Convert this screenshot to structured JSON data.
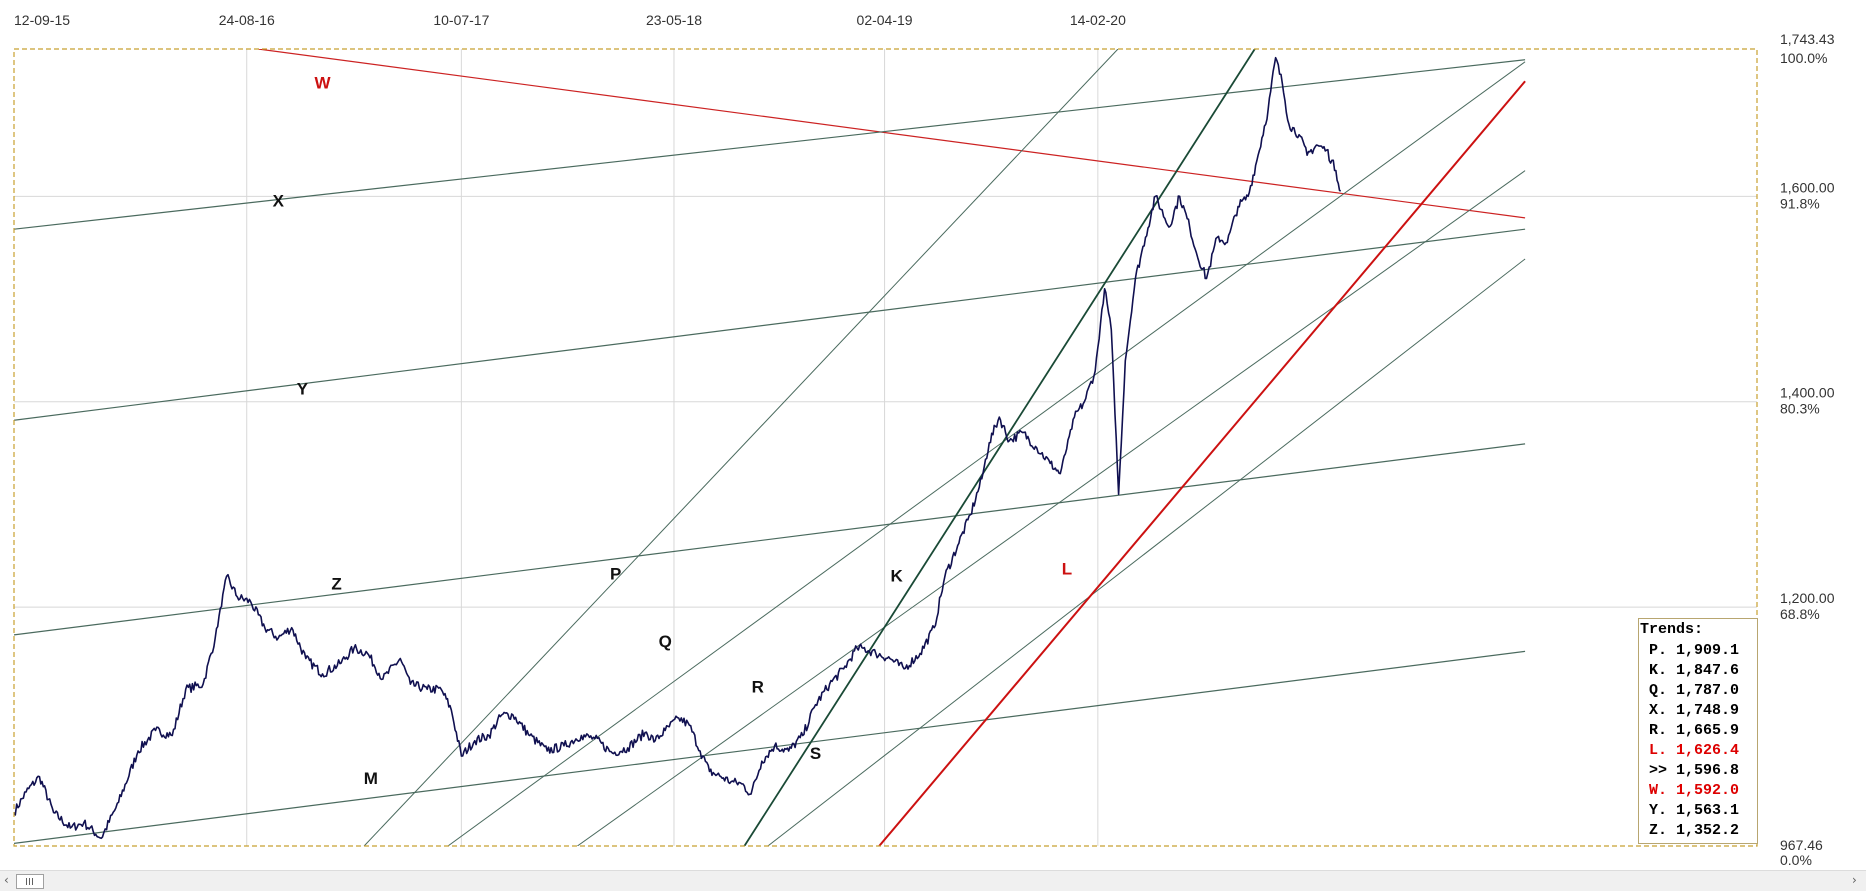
{
  "chart_data": {
    "type": "line",
    "x_start": "12-09-15",
    "x_end": "12-01-21",
    "ylim": [
      967.46,
      1743.43
    ],
    "date_ticks": [
      "12-09-15",
      "24-08-16",
      "10-07-17",
      "23-05-18",
      "02-04-19",
      "14-02-20"
    ],
    "price_ticks": [
      {
        "value": 1743.43,
        "label": "1,743.43",
        "pct": "100.0%"
      },
      {
        "value": 1600,
        "label": "1,600.00",
        "pct": "91.8%"
      },
      {
        "value": 1400,
        "label": "1,400.00",
        "pct": "80.3%"
      },
      {
        "value": 1200,
        "label": "1,200.00",
        "pct": "68.8%"
      },
      {
        "value": 967.46,
        "label": "967.46",
        "pct": "0.0%"
      }
    ],
    "price_series": [
      [
        "2015-09-12",
        1000
      ],
      [
        "2015-09-30",
        1020
      ],
      [
        "2015-10-20",
        1035
      ],
      [
        "2015-11-10",
        1000
      ],
      [
        "2015-12-05",
        985
      ],
      [
        "2015-12-25",
        990
      ],
      [
        "2016-01-20",
        975
      ],
      [
        "2016-02-15",
        1010
      ],
      [
        "2016-03-15",
        1060
      ],
      [
        "2016-04-10",
        1080
      ],
      [
        "2016-05-05",
        1075
      ],
      [
        "2016-05-25",
        1120
      ],
      [
        "2016-06-20",
        1125
      ],
      [
        "2016-07-08",
        1170
      ],
      [
        "2016-07-25",
        1230
      ],
      [
        "2016-08-10",
        1210
      ],
      [
        "2016-08-30",
        1205
      ],
      [
        "2016-09-20",
        1180
      ],
      [
        "2016-10-10",
        1170
      ],
      [
        "2016-10-30",
        1180
      ],
      [
        "2016-11-20",
        1150
      ],
      [
        "2016-12-15",
        1135
      ],
      [
        "2017-01-10",
        1145
      ],
      [
        "2017-01-31",
        1160
      ],
      [
        "2017-02-20",
        1155
      ],
      [
        "2017-03-15",
        1130
      ],
      [
        "2017-04-10",
        1150
      ],
      [
        "2017-04-25",
        1125
      ],
      [
        "2017-05-20",
        1120
      ],
      [
        "2017-06-10",
        1120
      ],
      [
        "2017-06-25",
        1100
      ],
      [
        "2017-07-10",
        1055
      ],
      [
        "2017-07-30",
        1070
      ],
      [
        "2017-08-20",
        1075
      ],
      [
        "2017-09-08",
        1095
      ],
      [
        "2017-09-25",
        1095
      ],
      [
        "2017-10-20",
        1075
      ],
      [
        "2017-11-15",
        1060
      ],
      [
        "2017-12-10",
        1065
      ],
      [
        "2018-01-05",
        1075
      ],
      [
        "2018-01-25",
        1072
      ],
      [
        "2018-02-20",
        1058
      ],
      [
        "2018-03-15",
        1063
      ],
      [
        "2018-04-10",
        1078
      ],
      [
        "2018-04-25",
        1070
      ],
      [
        "2018-05-10",
        1080
      ],
      [
        "2018-05-30",
        1092
      ],
      [
        "2018-06-15",
        1085
      ],
      [
        "2018-07-01",
        1060
      ],
      [
        "2018-07-15",
        1040
      ],
      [
        "2018-08-01",
        1035
      ],
      [
        "2018-08-16",
        1030
      ],
      [
        "2018-09-01",
        1028
      ],
      [
        "2018-09-15",
        1018
      ],
      [
        "2018-10-01",
        1050
      ],
      [
        "2018-10-20",
        1065
      ],
      [
        "2018-11-10",
        1060
      ],
      [
        "2018-12-01",
        1075
      ],
      [
        "2018-12-20",
        1105
      ],
      [
        "2019-01-10",
        1125
      ],
      [
        "2019-01-31",
        1140
      ],
      [
        "2019-02-20",
        1160
      ],
      [
        "2019-03-01",
        1160
      ],
      [
        "2019-03-20",
        1155
      ],
      [
        "2019-04-10",
        1150
      ],
      [
        "2019-05-01",
        1140
      ],
      [
        "2019-05-25",
        1155
      ],
      [
        "2019-06-15",
        1180
      ],
      [
        "2019-07-01",
        1230
      ],
      [
        "2019-07-20",
        1260
      ],
      [
        "2019-08-08",
        1290
      ],
      [
        "2019-08-25",
        1325
      ],
      [
        "2019-09-05",
        1360
      ],
      [
        "2019-09-20",
        1385
      ],
      [
        "2019-10-05",
        1362
      ],
      [
        "2019-10-25",
        1370
      ],
      [
        "2019-11-15",
        1355
      ],
      [
        "2019-12-05",
        1340
      ],
      [
        "2019-12-20",
        1330
      ],
      [
        "2020-01-10",
        1385
      ],
      [
        "2020-01-25",
        1400
      ],
      [
        "2020-02-10",
        1430
      ],
      [
        "2020-02-24",
        1510
      ],
      [
        "2020-03-05",
        1470
      ],
      [
        "2020-03-16",
        1310
      ],
      [
        "2020-03-26",
        1440
      ],
      [
        "2020-04-10",
        1520
      ],
      [
        "2020-04-25",
        1560
      ],
      [
        "2020-05-10",
        1600
      ],
      [
        "2020-05-30",
        1570
      ],
      [
        "2020-06-15",
        1600
      ],
      [
        "2020-06-30",
        1570
      ],
      [
        "2020-07-10",
        1545
      ],
      [
        "2020-07-25",
        1520
      ],
      [
        "2020-08-10",
        1560
      ],
      [
        "2020-08-25",
        1555
      ],
      [
        "2020-09-10",
        1590
      ],
      [
        "2020-09-25",
        1600
      ],
      [
        "2020-10-10",
        1640
      ],
      [
        "2020-10-25",
        1685
      ],
      [
        "2020-11-05",
        1735
      ],
      [
        "2020-11-15",
        1710
      ],
      [
        "2020-11-25",
        1670
      ],
      [
        "2020-12-10",
        1660
      ],
      [
        "2020-12-22",
        1640
      ],
      [
        "2021-01-05",
        1650
      ],
      [
        "2021-01-20",
        1645
      ],
      [
        "2021-02-03",
        1625
      ],
      [
        "2021-02-10",
        1605
      ]
    ],
    "trend_lines": [
      {
        "name": "W",
        "color": "#cc2222",
        "width": 1.2,
        "p1": [
          "2016-09-10",
          1743.43
        ],
        "p2": [
          "2021-11-12",
          1579
        ]
      },
      {
        "name": "X",
        "color": "#4a6a5e",
        "width": 1.2,
        "p1": [
          "2015-09-12",
          1568
        ],
        "p2": [
          "2021-11-12",
          1733
        ]
      },
      {
        "name": "Y",
        "color": "#4a6a5e",
        "width": 1.2,
        "p1": [
          "2015-09-12",
          1382
        ],
        "p2": [
          "2021-11-12",
          1568
        ]
      },
      {
        "name": "Z",
        "color": "#4a6a5e",
        "width": 1.2,
        "p1": [
          "2015-09-12",
          1173
        ],
        "p2": [
          "2021-11-12",
          1359
        ]
      },
      {
        "name": "M",
        "color": "#4a6a5e",
        "width": 1.2,
        "p1": [
          "2015-09-12",
          970
        ],
        "p2": [
          "2021-11-12",
          1157
        ]
      },
      {
        "name": "P",
        "color": "#4a6a5e",
        "width": 1.0,
        "p1": [
          "2017-02-15",
          967.46
        ],
        "p2": [
          "2020-03-15",
          1743.43
        ]
      },
      {
        "name": "Q",
        "color": "#4a6a5e",
        "width": 1.0,
        "p1": [
          "2017-06-20",
          967.46
        ],
        "p2": [
          "2021-11-12",
          1731
        ]
      },
      {
        "name": "R",
        "color": "#4a6a5e",
        "width": 1.0,
        "p1": [
          "2017-12-30",
          967.46
        ],
        "p2": [
          "2021-11-12",
          1625
        ]
      },
      {
        "name": "S",
        "color": "#4a6a5e",
        "width": 1.0,
        "p1": [
          "2018-10-10",
          967.46
        ],
        "p2": [
          "2021-11-12",
          1539
        ]
      },
      {
        "name": "K",
        "color": "#1a4a36",
        "width": 1.8,
        "p1": [
          "2018-09-05",
          967.46
        ],
        "p2": [
          "2020-10-05",
          1743.43
        ]
      },
      {
        "name": "L",
        "color": "#cc1111",
        "width": 2.0,
        "p1": [
          "2019-03-25",
          967.46
        ],
        "p2": [
          "2021-11-12",
          1712
        ]
      }
    ],
    "trend_labels": [
      {
        "text": "W",
        "at": [
          "2016-12-15",
          1705
        ],
        "color": "#cc1111"
      },
      {
        "text": "X",
        "at": [
          "2016-10-10",
          1590
        ],
        "color": "#111111"
      },
      {
        "text": "Y",
        "at": [
          "2016-11-15",
          1407
        ],
        "color": "#111111"
      },
      {
        "text": "Z",
        "at": [
          "2017-01-05",
          1217
        ],
        "color": "#111111"
      },
      {
        "text": "M",
        "at": [
          "2017-02-25",
          1028
        ],
        "color": "#111111"
      },
      {
        "text": "P",
        "at": [
          "2018-02-25",
          1227
        ],
        "color": "#111111"
      },
      {
        "text": "Q",
        "at": [
          "2018-05-10",
          1161
        ],
        "color": "#111111"
      },
      {
        "text": "R",
        "at": [
          "2018-09-25",
          1117
        ],
        "color": "#111111"
      },
      {
        "text": "S",
        "at": [
          "2018-12-20",
          1052
        ],
        "color": "#111111"
      },
      {
        "text": "K",
        "at": [
          "2019-04-20",
          1225
        ],
        "color": "#111111"
      },
      {
        "text": "L",
        "at": [
          "2019-12-30",
          1232
        ],
        "color": "#cc1111"
      }
    ]
  },
  "legend": {
    "title": "Trends:",
    "items": [
      {
        "label": "P.",
        "value": "1,909.1",
        "color": "#000000"
      },
      {
        "label": "K.",
        "value": "1,847.6",
        "color": "#000000"
      },
      {
        "label": "Q.",
        "value": "1,787.0",
        "color": "#000000"
      },
      {
        "label": "X.",
        "value": "1,748.9",
        "color": "#000000"
      },
      {
        "label": "R.",
        "value": "1,665.9",
        "color": "#000000"
      },
      {
        "label": "L.",
        "value": "1,626.4",
        "color": "#dd0000"
      },
      {
        "label": ">>",
        "value": "1,596.8",
        "color": "#000000"
      },
      {
        "label": "W.",
        "value": "1,592.0",
        "color": "#dd0000"
      },
      {
        "label": "Y.",
        "value": "1,563.1",
        "color": "#000000"
      },
      {
        "label": "Z.",
        "value": "1,352.2",
        "color": "#000000"
      }
    ]
  },
  "colors": {
    "price_line": "#101050",
    "frame": "#c8a030",
    "grid": "#d8d8d8"
  },
  "scrollbar": {
    "left_arrow": "‹",
    "right_arrow": "›"
  }
}
